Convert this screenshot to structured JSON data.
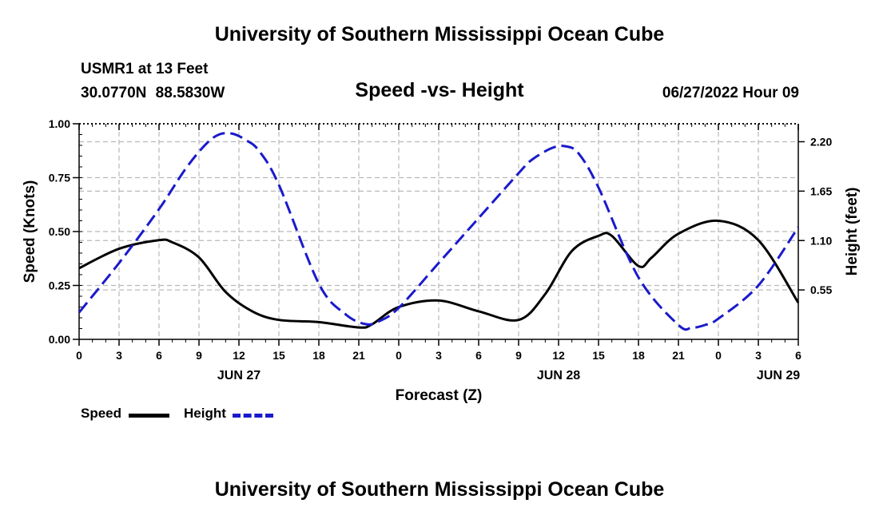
{
  "header": {
    "title": "University of Southern Mississippi Ocean Cube",
    "station": "USMR1 at 13 Feet",
    "coordinates": "30.0770N  88.5830W",
    "date": "06/27/2022 Hour 09"
  },
  "footer": {
    "title": "University of Southern Mississippi Ocean Cube"
  },
  "legend": {
    "speed_label": "Speed",
    "height_label": "Height"
  },
  "colors": {
    "speed": "#000000",
    "height": "#1a1acc",
    "grid": "#b8b8b8"
  },
  "chart_data": {
    "type": "line",
    "title": "Speed -vs- Height",
    "xlabel": "Forecast (Z)",
    "ylabel": "Speed (Knots)",
    "y2label": "Height (feet)",
    "x_range": [
      0,
      54
    ],
    "x_tick_positions": [
      0,
      3,
      6,
      9,
      12,
      15,
      18,
      21,
      24,
      27,
      30,
      33,
      36,
      39,
      42,
      45,
      48,
      51,
      54
    ],
    "x_tick_labels": [
      "0",
      "3",
      "6",
      "9",
      "12",
      "15",
      "18",
      "21",
      "0",
      "3",
      "6",
      "9",
      "12",
      "15",
      "18",
      "21",
      "0",
      "3",
      "6"
    ],
    "date_labels": [
      {
        "x": 12,
        "label": "JUN 27"
      },
      {
        "x": 36,
        "label": "JUN 28"
      },
      {
        "x": 52.5,
        "label": "JUN 29"
      }
    ],
    "ylim": [
      0,
      1
    ],
    "y_ticks": [
      0,
      0.25,
      0.5,
      0.75,
      1.0
    ],
    "y_tick_labels": [
      "0.00",
      "0.25",
      "0.50",
      "0.75",
      "1.00"
    ],
    "y2lim": [
      0,
      2.4
    ],
    "y2_ticks": [
      0.55,
      1.1,
      1.65,
      2.2
    ],
    "y2_tick_labels": [
      "0.55",
      "1.10",
      "1.65",
      "2.20"
    ],
    "grid": true,
    "series": [
      {
        "name": "Speed",
        "axis": "left",
        "style": "solid",
        "x": [
          0,
          3,
          6,
          7,
          9,
          11,
          13,
          15,
          18,
          21,
          22,
          24,
          27,
          30,
          33,
          35,
          37,
          39,
          40,
          42,
          43,
          45,
          48,
          51,
          54
        ],
        "y": [
          0.33,
          0.42,
          0.46,
          0.45,
          0.38,
          0.22,
          0.13,
          0.09,
          0.08,
          0.055,
          0.07,
          0.15,
          0.18,
          0.13,
          0.09,
          0.21,
          0.41,
          0.48,
          0.48,
          0.34,
          0.38,
          0.49,
          0.55,
          0.46,
          0.17
        ]
      },
      {
        "name": "Height",
        "axis": "right",
        "style": "dashed",
        "x": [
          0,
          3,
          6,
          8,
          9.5,
          10.5,
          11.5,
          12.5,
          13.5,
          15,
          18,
          20,
          21.5,
          22.5,
          24,
          27,
          30,
          33,
          34,
          35.5,
          36.5,
          37.5,
          39,
          42,
          45,
          46,
          47,
          48,
          51,
          54
        ],
        "y": [
          0.3,
          0.85,
          1.45,
          1.9,
          2.17,
          2.28,
          2.29,
          2.22,
          2.1,
          1.72,
          0.62,
          0.28,
          0.17,
          0.2,
          0.35,
          0.85,
          1.35,
          1.85,
          2.0,
          2.13,
          2.15,
          2.07,
          1.69,
          0.69,
          0.16,
          0.13,
          0.16,
          0.23,
          0.6,
          1.25
        ]
      }
    ]
  }
}
